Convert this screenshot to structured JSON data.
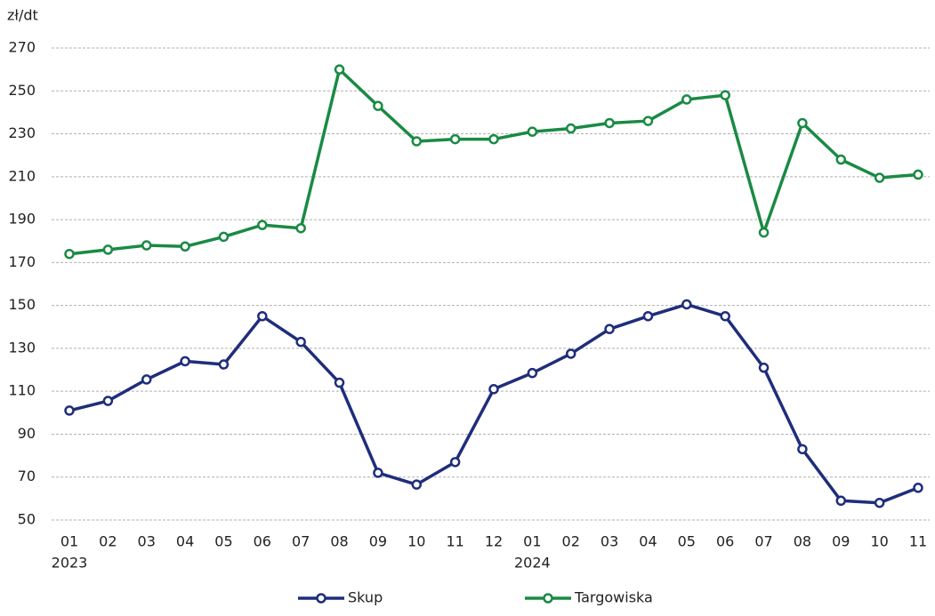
{
  "chart_data": {
    "type": "line",
    "y_label": "zł/dt",
    "categories": [
      "01",
      "02",
      "03",
      "04",
      "05",
      "06",
      "07",
      "08",
      "09",
      "10",
      "11",
      "12",
      "01",
      "02",
      "03",
      "04",
      "05",
      "06",
      "07",
      "08",
      "09",
      "10",
      "11"
    ],
    "years": [
      "2023",
      null,
      null,
      null,
      null,
      null,
      null,
      null,
      null,
      null,
      null,
      null,
      "2024",
      null,
      null,
      null,
      null,
      null,
      null,
      null,
      null,
      null,
      null
    ],
    "series": [
      {
        "name": "Skup",
        "color": "#1f2d7b",
        "values": [
          101,
          105.5,
          115.5,
          124,
          122.5,
          145,
          133,
          114,
          72,
          66.5,
          77,
          111,
          118.5,
          127.5,
          139,
          145,
          150.5,
          145,
          121,
          83,
          59,
          58,
          65
        ]
      },
      {
        "name": "Targowiska",
        "color": "#1a8a44",
        "values": [
          174,
          176,
          178,
          177.5,
          182,
          187.5,
          186,
          260,
          243,
          226.5,
          227.5,
          227.5,
          231,
          232.5,
          235,
          236,
          246,
          248,
          184,
          235,
          218,
          209.5,
          211
        ]
      }
    ],
    "ylim": [
      50,
      270
    ],
    "yticks": [
      50,
      70,
      90,
      110,
      130,
      150,
      170,
      190,
      210,
      230,
      250,
      270
    ],
    "grid": true,
    "legend": "bottom"
  }
}
